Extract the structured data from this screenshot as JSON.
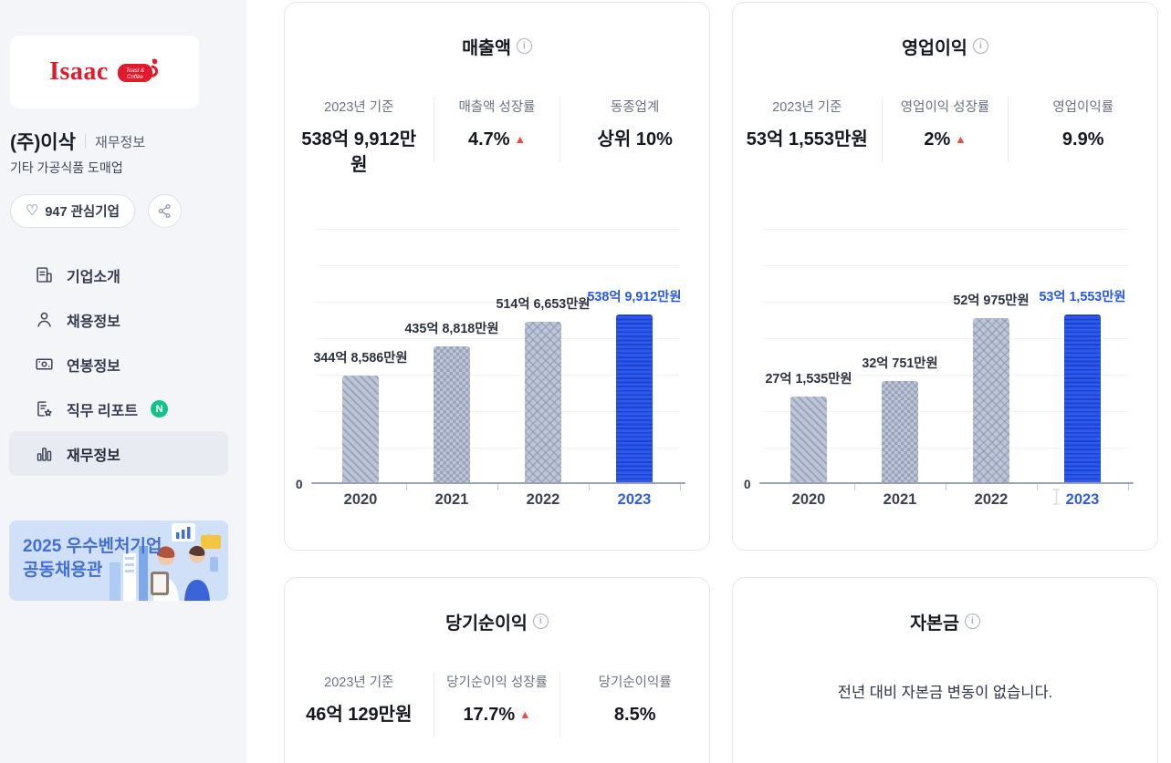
{
  "colors": {
    "accent_blue": "#2b5ce5",
    "bar_blue": "#2d59ee",
    "bar_gray": "#bdc5d7",
    "negative_red": "#ee4a40",
    "badge_green": "#14c287",
    "logo_red": "#e31a2c",
    "sidebar_bg": "#f4f5f9",
    "banner_bg": "#cfe0f8",
    "banner_text": "#4470d6"
  },
  "icons": {
    "info_glyph": "i",
    "up_arrow": "▲",
    "heart": "♡"
  },
  "sidebar": {
    "logo": {
      "brand": "Isaac",
      "sub_line1": "Toast &",
      "sub_line2": "Coffee"
    },
    "company_name": "(주)이삭",
    "page_label": "재무정보",
    "industry": "기타 가공식품 도매업",
    "favorite_button": {
      "label": "947 관심기업"
    },
    "nav": [
      {
        "label": "기업소개",
        "icon": "company-intro-icon",
        "active": false
      },
      {
        "label": "채용정보",
        "icon": "recruit-info-icon",
        "active": false
      },
      {
        "label": "연봉정보",
        "icon": "salary-info-icon",
        "active": false
      },
      {
        "label": "직무 리포트",
        "icon": "job-report-icon",
        "badge": "N",
        "active": false
      },
      {
        "label": "재무정보",
        "icon": "finance-info-icon",
        "active": true
      }
    ],
    "banner": {
      "line1": "2025 우수벤처기업",
      "line2": "공동채용관"
    }
  },
  "cards": [
    {
      "title": "매출액",
      "stats": [
        {
          "label": "2023년 기준",
          "value": "538억 9,912만원"
        },
        {
          "label": "매출액 성장률",
          "value": "4.7%",
          "trend": "up"
        },
        {
          "label": "동종업계",
          "value": "상위 10%"
        }
      ]
    },
    {
      "title": "영업이익",
      "stats": [
        {
          "label": "2023년 기준",
          "value": "53억 1,553만원"
        },
        {
          "label": "영업이익 성장률",
          "value": "2%",
          "trend": "up"
        },
        {
          "label": "영업이익률",
          "value": "9.9%"
        }
      ]
    },
    {
      "title": "당기순이익",
      "stats": [
        {
          "label": "2023년 기준",
          "value": "46억 129만원"
        },
        {
          "label": "당기순이익 성장률",
          "value": "17.7%",
          "trend": "up"
        },
        {
          "label": "당기순이익률",
          "value": "8.5%"
        }
      ]
    },
    {
      "title": "자본금",
      "message": "전년 대비 자본금 변동이 없습니다."
    }
  ],
  "chart_data": [
    {
      "type": "bar",
      "title": "매출액",
      "unit": "만원",
      "categories": [
        "2020",
        "2021",
        "2022",
        "2023"
      ],
      "values": [
        3448586,
        4358818,
        5146653,
        5389912
      ],
      "value_labels": [
        "344억 8,586만원",
        "435억 8,818만원",
        "514억 6,653만원",
        "538억 9,912만원"
      ],
      "baseline_label": "0",
      "ylim": [
        0,
        5389912
      ],
      "grid": true,
      "highlight_index": 3,
      "patterns": [
        "diagonal",
        "checker",
        "zigzag",
        "horizontal-stripe-blue"
      ]
    },
    {
      "type": "bar",
      "title": "영업이익",
      "unit": "만원",
      "categories": [
        "2020",
        "2021",
        "2022",
        "2023"
      ],
      "values": [
        271535,
        320751,
        520975,
        531553
      ],
      "value_labels": [
        "27억 1,535만원",
        "32억 751만원",
        "52억 975만원",
        "53억 1,553만원"
      ],
      "baseline_label": "0",
      "ylim": [
        0,
        531553
      ],
      "grid": true,
      "highlight_index": 3,
      "patterns": [
        "diagonal",
        "checker",
        "zigzag",
        "horizontal-stripe-blue"
      ]
    }
  ]
}
